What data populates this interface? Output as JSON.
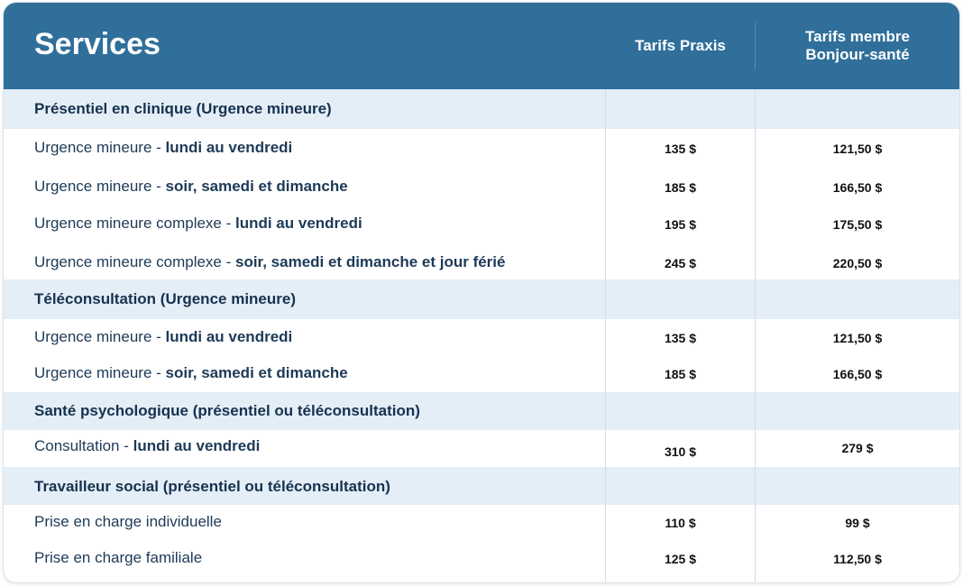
{
  "header": {
    "title": "Services",
    "col_praxis": "Tarifs Praxis",
    "col_member_line1": "Tarifs membre",
    "col_member_line2": "Bonjour-santé"
  },
  "sections": [
    {
      "title": "Présentiel en clinique (Urgence mineure)",
      "rows": [
        {
          "label": "Urgence mineure - ",
          "detail": "lundi au vendredi",
          "praxis": "135 $",
          "member": "121,50 $"
        },
        {
          "label": "Urgence mineure - ",
          "detail": "soir, samedi et dimanche",
          "praxis": "185 $",
          "member": "166,50 $"
        },
        {
          "label": "Urgence mineure complexe - ",
          "detail": "lundi au vendredi",
          "praxis": "195 $",
          "member": "175,50 $"
        },
        {
          "label": "Urgence mineure complexe - ",
          "detail": "soir, samedi et dimanche et jour férié",
          "praxis": "245 $",
          "member": "220,50 $"
        }
      ]
    },
    {
      "title": "Téléconsultation (Urgence mineure)",
      "rows": [
        {
          "label": "Urgence mineure - ",
          "detail": "lundi au vendredi",
          "praxis": "135 $",
          "member": "121,50 $"
        },
        {
          "label": "Urgence mineure - ",
          "detail": "soir, samedi et dimanche",
          "praxis": "185 $",
          "member": "166,50 $"
        }
      ]
    },
    {
      "title": "Santé psychologique (présentiel ou téléconsultation)",
      "rows": [
        {
          "label": "Consultation - ",
          "detail": "lundi au vendredi",
          "praxis": "310 $",
          "member": "279 $"
        }
      ]
    },
    {
      "title": "Travailleur social (présentiel ou téléconsultation)",
      "rows": [
        {
          "label": "Prise en charge individuelle",
          "detail": "",
          "praxis": "110 $",
          "member": "99 $"
        },
        {
          "label": "Prise en charge familiale",
          "detail": "",
          "praxis": "125 $",
          "member": "112,50 $"
        }
      ]
    }
  ],
  "colors": {
    "header_bg": "#2f6f9a",
    "section_bg": "#e4eef7",
    "label_text": "#1d3a57"
  }
}
